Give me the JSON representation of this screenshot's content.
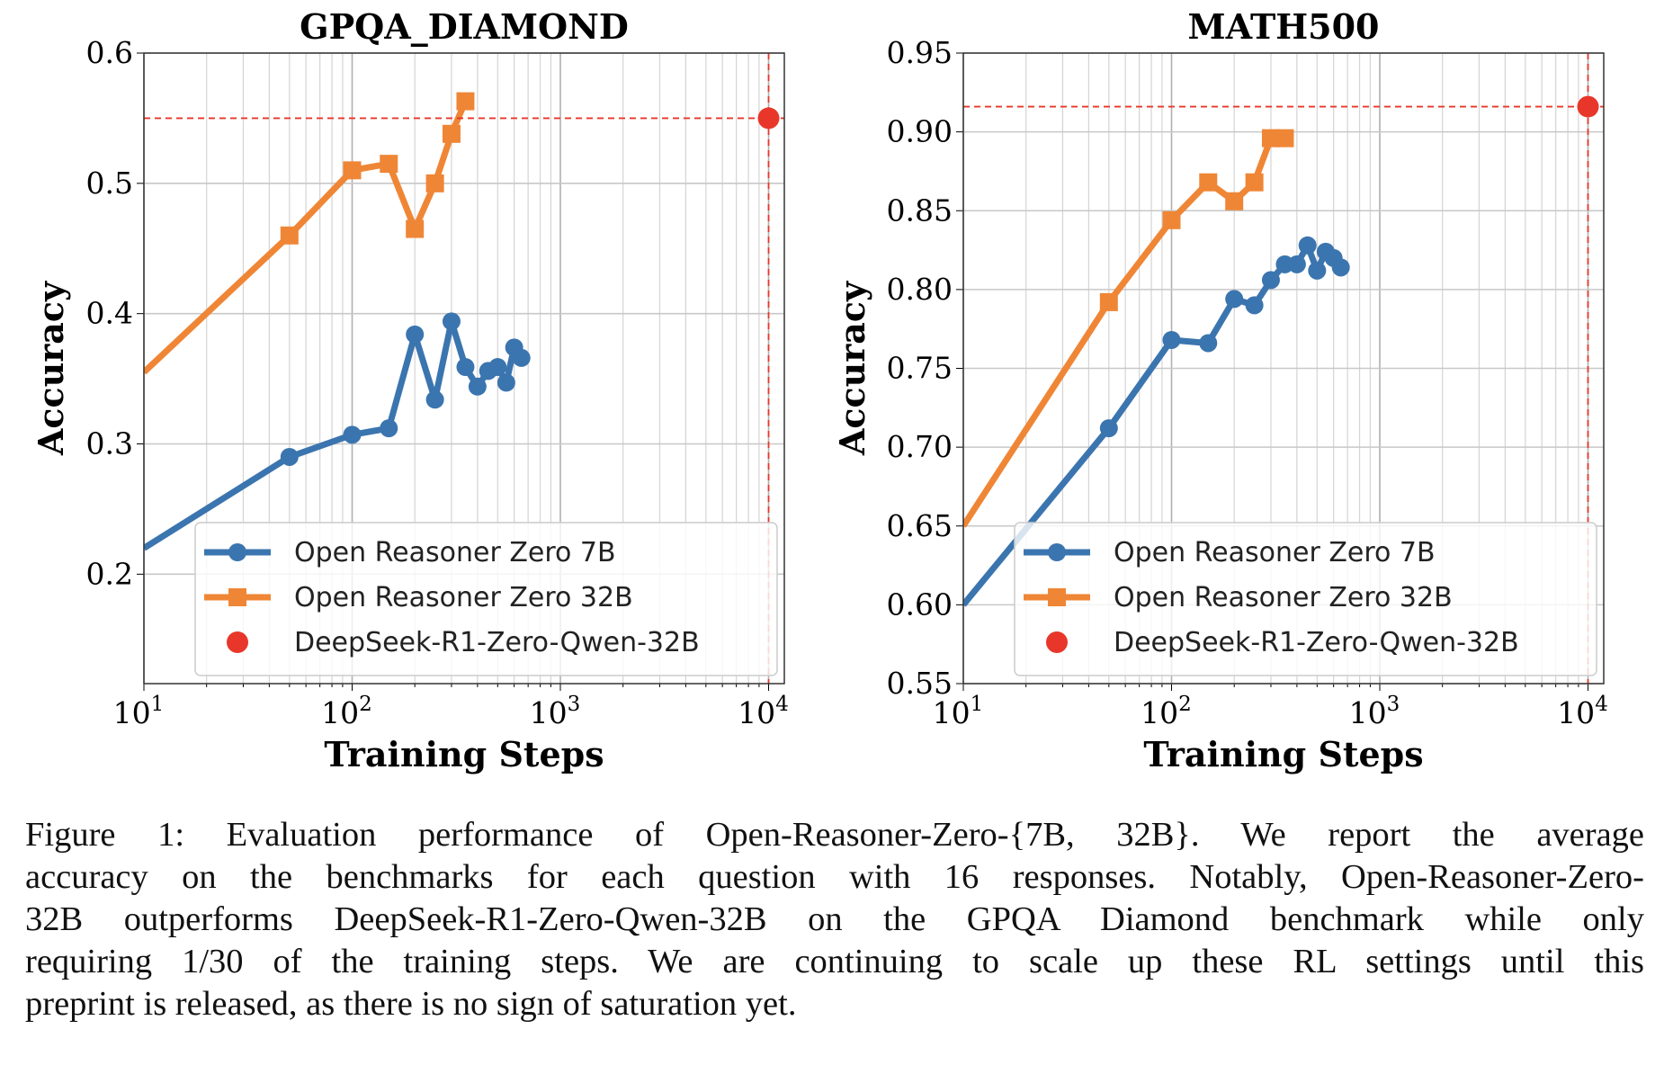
{
  "chart_data": [
    {
      "type": "line",
      "title": "GPQA_DIAMOND",
      "xlabel": "Training Steps",
      "ylabel": "Accuracy",
      "xscale": "log",
      "xlim": [
        10,
        11900
      ],
      "ylim": [
        0.116,
        0.6
      ],
      "xticks": [
        {
          "v": 10,
          "base": "10",
          "exp": "1"
        },
        {
          "v": 100,
          "base": "10",
          "exp": "2"
        },
        {
          "v": 1000,
          "base": "10",
          "exp": "3"
        },
        {
          "v": 10000,
          "base": "10",
          "exp": "4"
        }
      ],
      "yticks": [
        {
          "v": 0.2,
          "label": "0.2"
        },
        {
          "v": 0.3,
          "label": "0.3"
        },
        {
          "v": 0.4,
          "label": "0.4"
        },
        {
          "v": 0.5,
          "label": "0.5"
        },
        {
          "v": 0.6,
          "label": "0.6"
        }
      ],
      "grid": true,
      "legend_position": "lower-right",
      "series": [
        {
          "name": "Open Reasoner Zero 7B",
          "color": "#3b75af",
          "marker": "circle",
          "x": [
            10,
            50,
            100,
            150,
            200,
            250,
            300,
            350,
            400,
            450,
            500,
            550,
            600,
            650
          ],
          "y": [
            0.22,
            0.29,
            0.307,
            0.312,
            0.384,
            0.334,
            0.394,
            0.359,
            0.344,
            0.356,
            0.359,
            0.347,
            0.374,
            0.366
          ]
        },
        {
          "name": "Open Reasoner Zero 32B",
          "color": "#ef8636",
          "marker": "square",
          "x": [
            10,
            50,
            100,
            150,
            200,
            250,
            300,
            350
          ],
          "y": [
            0.355,
            0.46,
            0.51,
            0.515,
            0.465,
            0.5,
            0.538,
            0.563
          ]
        },
        {
          "name": "DeepSeek-R1-Zero-Qwen-32B",
          "color": "#e8372a",
          "marker": "dot-with-crosshair",
          "x": [
            10000
          ],
          "y": [
            0.55
          ]
        }
      ]
    },
    {
      "type": "line",
      "title": "MATH500",
      "xlabel": "Training Steps",
      "ylabel": "Accuracy",
      "xscale": "log",
      "xlim": [
        10,
        11900
      ],
      "ylim": [
        0.55,
        0.95
      ],
      "xticks": [
        {
          "v": 10,
          "base": "10",
          "exp": "1"
        },
        {
          "v": 100,
          "base": "10",
          "exp": "2"
        },
        {
          "v": 1000,
          "base": "10",
          "exp": "3"
        },
        {
          "v": 10000,
          "base": "10",
          "exp": "4"
        }
      ],
      "yticks": [
        {
          "v": 0.55,
          "label": "0.55"
        },
        {
          "v": 0.6,
          "label": "0.60"
        },
        {
          "v": 0.65,
          "label": "0.65"
        },
        {
          "v": 0.7,
          "label": "0.70"
        },
        {
          "v": 0.75,
          "label": "0.75"
        },
        {
          "v": 0.8,
          "label": "0.80"
        },
        {
          "v": 0.85,
          "label": "0.85"
        },
        {
          "v": 0.9,
          "label": "0.90"
        },
        {
          "v": 0.95,
          "label": "0.95"
        }
      ],
      "grid": true,
      "legend_position": "lower-right",
      "series": [
        {
          "name": "Open Reasoner Zero 7B",
          "color": "#3b75af",
          "marker": "circle",
          "x": [
            10,
            50,
            100,
            150,
            200,
            250,
            300,
            350,
            400,
            450,
            500,
            550,
            600,
            650
          ],
          "y": [
            0.6,
            0.712,
            0.768,
            0.766,
            0.794,
            0.79,
            0.806,
            0.816,
            0.816,
            0.828,
            0.812,
            0.824,
            0.82,
            0.814
          ]
        },
        {
          "name": "Open Reasoner Zero 32B",
          "color": "#ef8636",
          "marker": "square",
          "x": [
            10,
            50,
            100,
            150,
            200,
            250,
            300,
            350
          ],
          "y": [
            0.65,
            0.792,
            0.844,
            0.868,
            0.856,
            0.868,
            0.896,
            0.896
          ]
        },
        {
          "name": "DeepSeek-R1-Zero-Qwen-32B",
          "color": "#e8372a",
          "marker": "dot-with-crosshair",
          "x": [
            10000
          ],
          "y": [
            0.916
          ]
        }
      ]
    }
  ],
  "caption": {
    "lines": [
      "Figure 1: Evaluation performance of Open-Reasoner-Zero-{7B, 32B}. We report the average",
      "accuracy on the benchmarks for each question with 16 responses. Notably, Open-Reasoner-Zero-",
      "32B outperforms DeepSeek-R1-Zero-Qwen-32B on the GPQA Diamond benchmark while only",
      "requiring 1/30 of the training steps. We are continuing to scale up these RL settings until this",
      "preprint is released, as there is no sign of saturation yet."
    ]
  }
}
